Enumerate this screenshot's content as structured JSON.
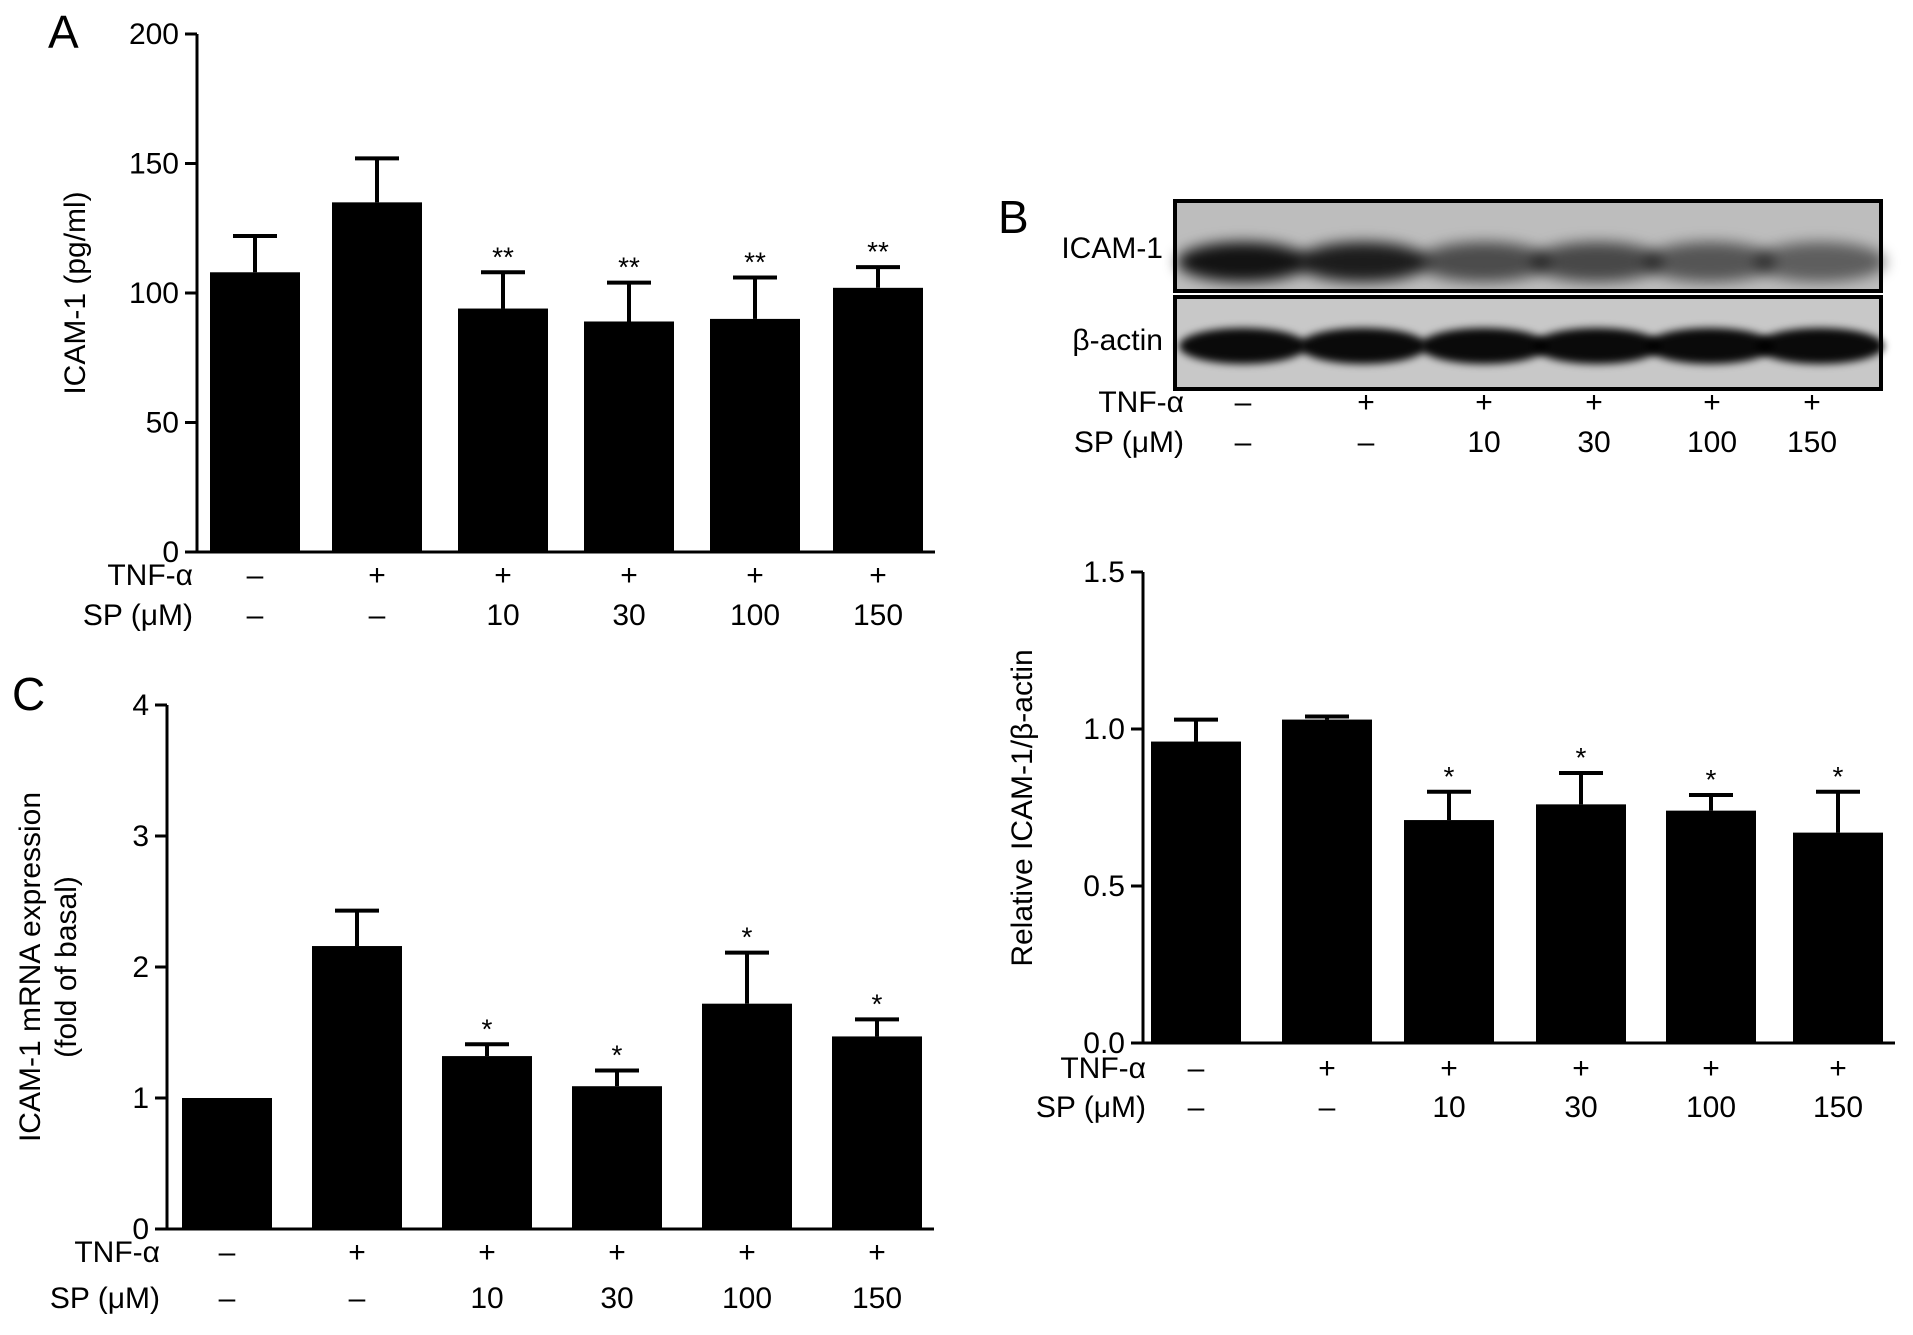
{
  "panels": {
    "A": "A",
    "B": "B",
    "C": "C"
  },
  "conditions": {
    "tnf_label": "TNF-α",
    "sp_label": "SP (μM)",
    "tnf": [
      "–",
      "+",
      "+",
      "+",
      "+",
      "+"
    ],
    "sp": [
      "–",
      "–",
      "10",
      "30",
      "100",
      "150"
    ]
  },
  "blot": {
    "labels": [
      "ICAM-1",
      "β-actin"
    ]
  },
  "chart_data": [
    {
      "panel": "A",
      "type": "bar",
      "ylabel": "ICAM-1 (pg/ml)",
      "ylim": [
        0,
        200
      ],
      "yticks": [
        "0",
        "50",
        "100",
        "150",
        "200"
      ],
      "values": [
        108,
        135,
        94,
        89,
        90,
        102
      ],
      "errors": [
        14,
        17,
        14,
        15,
        16,
        8
      ],
      "significance": [
        "",
        "",
        "**",
        "**",
        "**",
        "**"
      ],
      "colors": {
        "bar": "#000000"
      }
    },
    {
      "panel": "B",
      "type": "bar",
      "ylabel": "Relative ICAM-1/β-actin",
      "ylim": [
        0,
        1.5
      ],
      "yticks": [
        "0.0",
        "0.5",
        "1.0",
        "1.5"
      ],
      "values": [
        0.96,
        1.03,
        0.71,
        0.76,
        0.74,
        0.67
      ],
      "errors": [
        0.07,
        0.01,
        0.09,
        0.1,
        0.05,
        0.13
      ],
      "significance": [
        "",
        "",
        "*",
        "*",
        "*",
        "*"
      ],
      "colors": {
        "bar": "#000000"
      }
    },
    {
      "panel": "C",
      "type": "bar",
      "ylabel": "ICAM-1 mRNA expression",
      "ylabel2": "(fold of basal)",
      "ylim": [
        0,
        4
      ],
      "yticks": [
        "0",
        "1",
        "2",
        "3",
        "4"
      ],
      "values": [
        1.0,
        2.16,
        1.32,
        1.09,
        1.72,
        1.47
      ],
      "errors": [
        0.0,
        0.27,
        0.09,
        0.12,
        0.39,
        0.13
      ],
      "significance": [
        "",
        "",
        "*",
        "*",
        "*",
        "*"
      ],
      "colors": {
        "bar": "#000000"
      }
    }
  ]
}
